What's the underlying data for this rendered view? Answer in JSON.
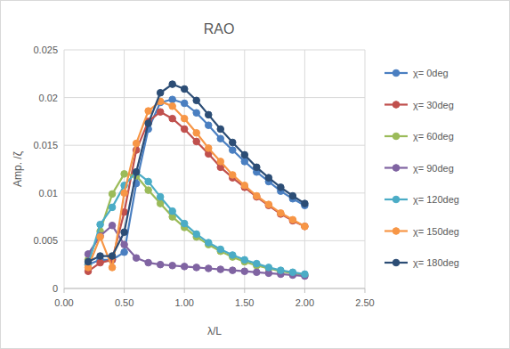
{
  "chart_data": {
    "type": "line",
    "title": "RAO",
    "x_label": "λ/L",
    "y_label": "Amp. /ζ",
    "x": [
      0.2,
      0.3,
      0.4,
      0.5,
      0.6,
      0.7,
      0.8,
      0.9,
      1.0,
      1.1,
      1.2,
      1.3,
      1.4,
      1.5,
      1.6,
      1.7,
      1.8,
      1.9,
      2.0
    ],
    "series": [
      {
        "name": "χ= 0deg",
        "color": "#4a7fc1",
        "values": [
          0.0025,
          0.003,
          0.003,
          0.0038,
          0.011,
          0.0167,
          0.0195,
          0.0198,
          0.0194,
          0.0184,
          0.0171,
          0.0157,
          0.0145,
          0.0133,
          0.0122,
          0.0112,
          0.0102,
          0.0094,
          0.0087
        ]
      },
      {
        "name": "χ= 30deg",
        "color": "#c0504d",
        "values": [
          0.0018,
          0.0027,
          0.003,
          0.008,
          0.0145,
          0.0175,
          0.0185,
          0.0178,
          0.0167,
          0.0154,
          0.0141,
          0.0127,
          0.0116,
          0.0106,
          0.0096,
          0.0087,
          0.0078,
          0.0071,
          0.0065
        ]
      },
      {
        "name": "χ= 60deg",
        "color": "#9bbb59",
        "values": [
          0.003,
          0.006,
          0.0099,
          0.012,
          0.0118,
          0.0103,
          0.0089,
          0.0075,
          0.0064,
          0.0054,
          0.0046,
          0.0039,
          0.0033,
          0.0028,
          0.0024,
          0.0021,
          0.0018,
          0.0016,
          0.0014
        ]
      },
      {
        "name": "χ= 90deg",
        "color": "#8064a2",
        "values": [
          0.0036,
          0.0055,
          0.0066,
          0.0046,
          0.0032,
          0.0027,
          0.0025,
          0.0024,
          0.0023,
          0.0022,
          0.0021,
          0.002,
          0.0019,
          0.0018,
          0.0017,
          0.0016,
          0.0015,
          0.0014,
          0.0013
        ]
      },
      {
        "name": "χ= 120deg",
        "color": "#4bacc6",
        "values": [
          0.0025,
          0.0067,
          0.0085,
          0.0108,
          0.0122,
          0.0112,
          0.0096,
          0.0081,
          0.0068,
          0.0057,
          0.0048,
          0.0041,
          0.0035,
          0.003,
          0.0026,
          0.0022,
          0.0019,
          0.0017,
          0.0015
        ]
      },
      {
        "name": "χ= 150deg",
        "color": "#f79646",
        "values": [
          0.0022,
          0.0054,
          0.0022,
          0.01,
          0.0152,
          0.0186,
          0.0196,
          0.0191,
          0.0178,
          0.0163,
          0.0147,
          0.0133,
          0.0119,
          0.0108,
          0.0097,
          0.0088,
          0.0079,
          0.0072,
          0.0065
        ]
      },
      {
        "name": "χ= 180deg",
        "color": "#2c4d75",
        "values": [
          0.0028,
          0.0034,
          0.0034,
          0.0059,
          0.0122,
          0.0173,
          0.0205,
          0.0214,
          0.0209,
          0.0197,
          0.0182,
          0.0167,
          0.0153,
          0.014,
          0.0127,
          0.0116,
          0.0106,
          0.0097,
          0.0089
        ]
      }
    ],
    "xlim": [
      0,
      2.5
    ],
    "xticks": [
      {
        "value": 0,
        "label": "0.00"
      },
      {
        "value": 0.5,
        "label": "0.50"
      },
      {
        "value": 1,
        "label": "1.00"
      },
      {
        "value": 1.5,
        "label": "1.50"
      },
      {
        "value": 2,
        "label": "2.00"
      },
      {
        "value": 2.5,
        "label": "2.50"
      }
    ],
    "ylim": [
      0,
      0.025
    ],
    "yticks": [
      0,
      0.005,
      0.01,
      0.015,
      0.02,
      0.025
    ],
    "grid": true,
    "legend": "right",
    "marker": "circle"
  }
}
